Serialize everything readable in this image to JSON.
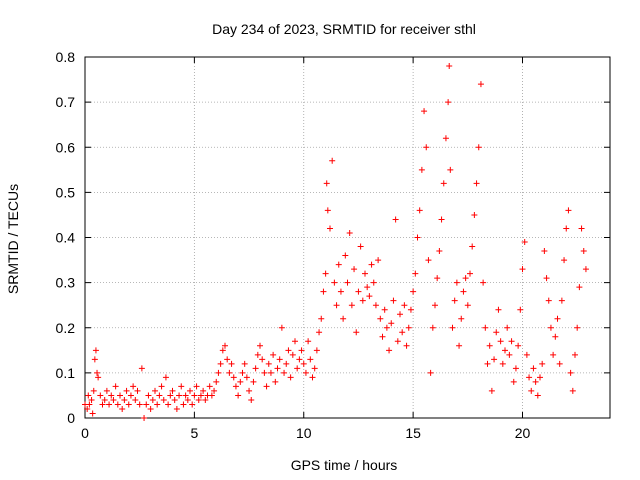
{
  "chart_data": {
    "type": "scatter",
    "title": "Day 234 of 2023, SRMTID for receiver sthl",
    "xlabel": "GPS time / hours",
    "ylabel": "SRMTID / TECUs",
    "xlim": [
      0,
      24
    ],
    "ylim": [
      0,
      0.8
    ],
    "xticks": [
      0,
      5,
      10,
      15,
      20
    ],
    "xtick_labels": [
      "0",
      "5",
      "10",
      "15",
      "20"
    ],
    "yticks": [
      0,
      0.1,
      0.2,
      0.3,
      0.4,
      0.5,
      0.6,
      0.7,
      0.8
    ],
    "ytick_labels": [
      "0",
      "0.1",
      "0.2",
      "0.3",
      "0.4",
      "0.5",
      "0.6",
      "0.7",
      "0.8"
    ],
    "grid": true,
    "marker": "+",
    "color": "#ff0000",
    "series": [
      {
        "name": "sthl",
        "points": [
          [
            0.0,
            0.03
          ],
          [
            0.1,
            0.02
          ],
          [
            0.15,
            0.05
          ],
          [
            0.2,
            0.03
          ],
          [
            0.3,
            0.04
          ],
          [
            0.35,
            0.01
          ],
          [
            0.4,
            0.06
          ],
          [
            0.45,
            0.13
          ],
          [
            0.5,
            0.15
          ],
          [
            0.55,
            0.1
          ],
          [
            0.6,
            0.09
          ],
          [
            0.7,
            0.05
          ],
          [
            0.8,
            0.03
          ],
          [
            0.9,
            0.04
          ],
          [
            1.0,
            0.06
          ],
          [
            1.1,
            0.03
          ],
          [
            1.2,
            0.05
          ],
          [
            1.3,
            0.04
          ],
          [
            1.4,
            0.07
          ],
          [
            1.5,
            0.03
          ],
          [
            1.6,
            0.05
          ],
          [
            1.7,
            0.02
          ],
          [
            1.8,
            0.04
          ],
          [
            1.9,
            0.06
          ],
          [
            2.0,
            0.03
          ],
          [
            2.1,
            0.05
          ],
          [
            2.2,
            0.07
          ],
          [
            2.3,
            0.04
          ],
          [
            2.4,
            0.06
          ],
          [
            2.5,
            0.03
          ],
          [
            2.6,
            0.11
          ],
          [
            2.7,
            0.0
          ],
          [
            2.8,
            0.03
          ],
          [
            2.9,
            0.05
          ],
          [
            3.0,
            0.02
          ],
          [
            3.1,
            0.04
          ],
          [
            3.2,
            0.06
          ],
          [
            3.3,
            0.03
          ],
          [
            3.4,
            0.05
          ],
          [
            3.5,
            0.07
          ],
          [
            3.6,
            0.04
          ],
          [
            3.7,
            0.09
          ],
          [
            3.8,
            0.03
          ],
          [
            3.9,
            0.05
          ],
          [
            4.0,
            0.06
          ],
          [
            4.1,
            0.04
          ],
          [
            4.2,
            0.02
          ],
          [
            4.3,
            0.05
          ],
          [
            4.4,
            0.07
          ],
          [
            4.5,
            0.03
          ],
          [
            4.6,
            0.05
          ],
          [
            4.7,
            0.04
          ],
          [
            4.8,
            0.06
          ],
          [
            4.9,
            0.03
          ],
          [
            5.0,
            0.05
          ],
          [
            5.1,
            0.07
          ],
          [
            5.2,
            0.04
          ],
          [
            5.3,
            0.05
          ],
          [
            5.4,
            0.06
          ],
          [
            5.5,
            0.04
          ],
          [
            5.6,
            0.05
          ],
          [
            5.7,
            0.07
          ],
          [
            5.8,
            0.05
          ],
          [
            5.9,
            0.06
          ],
          [
            6.0,
            0.08
          ],
          [
            6.1,
            0.1
          ],
          [
            6.2,
            0.12
          ],
          [
            6.3,
            0.15
          ],
          [
            6.4,
            0.16
          ],
          [
            6.5,
            0.13
          ],
          [
            6.6,
            0.1
          ],
          [
            6.7,
            0.12
          ],
          [
            6.8,
            0.09
          ],
          [
            6.9,
            0.07
          ],
          [
            7.0,
            0.05
          ],
          [
            7.1,
            0.08
          ],
          [
            7.2,
            0.1
          ],
          [
            7.3,
            0.12
          ],
          [
            7.4,
            0.09
          ],
          [
            7.5,
            0.06
          ],
          [
            7.6,
            0.04
          ],
          [
            7.7,
            0.08
          ],
          [
            7.8,
            0.11
          ],
          [
            7.9,
            0.14
          ],
          [
            8.0,
            0.16
          ],
          [
            8.1,
            0.13
          ],
          [
            8.2,
            0.1
          ],
          [
            8.3,
            0.07
          ],
          [
            8.4,
            0.12
          ],
          [
            8.5,
            0.1
          ],
          [
            8.6,
            0.14
          ],
          [
            8.7,
            0.08
          ],
          [
            8.8,
            0.11
          ],
          [
            8.9,
            0.13
          ],
          [
            9.0,
            0.2
          ],
          [
            9.1,
            0.1
          ],
          [
            9.2,
            0.12
          ],
          [
            9.3,
            0.15
          ],
          [
            9.4,
            0.09
          ],
          [
            9.5,
            0.14
          ],
          [
            9.6,
            0.17
          ],
          [
            9.7,
            0.11
          ],
          [
            9.8,
            0.13
          ],
          [
            9.9,
            0.15
          ],
          [
            10.0,
            0.12
          ],
          [
            10.1,
            0.1
          ],
          [
            10.2,
            0.17
          ],
          [
            10.3,
            0.13
          ],
          [
            10.4,
            0.09
          ],
          [
            10.5,
            0.11
          ],
          [
            10.6,
            0.15
          ],
          [
            10.7,
            0.19
          ],
          [
            10.8,
            0.22
          ],
          [
            10.9,
            0.28
          ],
          [
            11.0,
            0.32
          ],
          [
            11.05,
            0.52
          ],
          [
            11.1,
            0.46
          ],
          [
            11.2,
            0.42
          ],
          [
            11.3,
            0.57
          ],
          [
            11.4,
            0.3
          ],
          [
            11.5,
            0.25
          ],
          [
            11.6,
            0.34
          ],
          [
            11.7,
            0.28
          ],
          [
            11.8,
            0.22
          ],
          [
            11.9,
            0.36
          ],
          [
            12.0,
            0.3
          ],
          [
            12.1,
            0.41
          ],
          [
            12.2,
            0.25
          ],
          [
            12.3,
            0.33
          ],
          [
            12.4,
            0.19
          ],
          [
            12.5,
            0.28
          ],
          [
            12.6,
            0.38
          ],
          [
            12.7,
            0.26
          ],
          [
            12.8,
            0.32
          ],
          [
            12.9,
            0.29
          ],
          [
            13.0,
            0.27
          ],
          [
            13.1,
            0.34
          ],
          [
            13.2,
            0.3
          ],
          [
            13.3,
            0.25
          ],
          [
            13.4,
            0.35
          ],
          [
            13.5,
            0.22
          ],
          [
            13.6,
            0.18
          ],
          [
            13.7,
            0.24
          ],
          [
            13.8,
            0.2
          ],
          [
            13.9,
            0.15
          ],
          [
            14.0,
            0.21
          ],
          [
            14.1,
            0.26
          ],
          [
            14.2,
            0.44
          ],
          [
            14.3,
            0.17
          ],
          [
            14.4,
            0.23
          ],
          [
            14.5,
            0.19
          ],
          [
            14.6,
            0.25
          ],
          [
            14.7,
            0.16
          ],
          [
            14.8,
            0.2
          ],
          [
            14.9,
            0.24
          ],
          [
            15.0,
            0.28
          ],
          [
            15.1,
            0.32
          ],
          [
            15.2,
            0.4
          ],
          [
            15.3,
            0.46
          ],
          [
            15.4,
            0.55
          ],
          [
            15.5,
            0.68
          ],
          [
            15.6,
            0.6
          ],
          [
            15.7,
            0.35
          ],
          [
            15.8,
            0.1
          ],
          [
            15.9,
            0.2
          ],
          [
            16.0,
            0.25
          ],
          [
            16.1,
            0.31
          ],
          [
            16.2,
            0.37
          ],
          [
            16.3,
            0.44
          ],
          [
            16.4,
            0.52
          ],
          [
            16.5,
            0.62
          ],
          [
            16.6,
            0.7
          ],
          [
            16.65,
            0.78
          ],
          [
            16.7,
            0.55
          ],
          [
            16.8,
            0.2
          ],
          [
            16.9,
            0.26
          ],
          [
            17.0,
            0.3
          ],
          [
            17.1,
            0.16
          ],
          [
            17.2,
            0.22
          ],
          [
            17.3,
            0.28
          ],
          [
            17.4,
            0.31
          ],
          [
            17.5,
            0.25
          ],
          [
            17.6,
            0.32
          ],
          [
            17.7,
            0.38
          ],
          [
            17.8,
            0.45
          ],
          [
            17.9,
            0.52
          ],
          [
            18.0,
            0.6
          ],
          [
            18.1,
            0.74
          ],
          [
            18.2,
            0.3
          ],
          [
            18.3,
            0.2
          ],
          [
            18.4,
            0.12
          ],
          [
            18.5,
            0.16
          ],
          [
            18.6,
            0.06
          ],
          [
            18.7,
            0.13
          ],
          [
            18.8,
            0.19
          ],
          [
            18.9,
            0.24
          ],
          [
            19.0,
            0.17
          ],
          [
            19.1,
            0.12
          ],
          [
            19.2,
            0.15
          ],
          [
            19.3,
            0.2
          ],
          [
            19.4,
            0.14
          ],
          [
            19.5,
            0.17
          ],
          [
            19.6,
            0.08
          ],
          [
            19.7,
            0.11
          ],
          [
            19.8,
            0.16
          ],
          [
            19.9,
            0.24
          ],
          [
            20.0,
            0.33
          ],
          [
            20.1,
            0.39
          ],
          [
            20.2,
            0.14
          ],
          [
            20.3,
            0.09
          ],
          [
            20.4,
            0.06
          ],
          [
            20.5,
            0.11
          ],
          [
            20.6,
            0.08
          ],
          [
            20.7,
            0.05
          ],
          [
            20.8,
            0.09
          ],
          [
            20.9,
            0.12
          ],
          [
            21.0,
            0.37
          ],
          [
            21.1,
            0.31
          ],
          [
            21.2,
            0.26
          ],
          [
            21.3,
            0.2
          ],
          [
            21.4,
            0.14
          ],
          [
            21.5,
            0.18
          ],
          [
            21.6,
            0.22
          ],
          [
            21.7,
            0.12
          ],
          [
            21.8,
            0.26
          ],
          [
            21.9,
            0.35
          ],
          [
            22.0,
            0.42
          ],
          [
            22.1,
            0.46
          ],
          [
            22.2,
            0.1
          ],
          [
            22.3,
            0.06
          ],
          [
            22.4,
            0.14
          ],
          [
            22.5,
            0.2
          ],
          [
            22.6,
            0.29
          ],
          [
            22.7,
            0.42
          ],
          [
            22.8,
            0.37
          ],
          [
            22.9,
            0.33
          ]
        ]
      }
    ]
  }
}
